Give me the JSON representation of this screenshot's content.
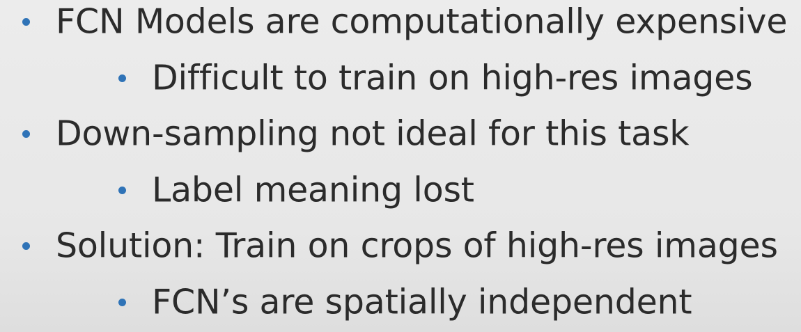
{
  "slide": {
    "bullets": [
      {
        "level": 1,
        "text": "FCN Models are computationally expensive"
      },
      {
        "level": 2,
        "text": "Difficult to train on high-res images"
      },
      {
        "level": 1,
        "text": "Down-sampling not ideal for this task"
      },
      {
        "level": 2,
        "text": "Label meaning lost"
      },
      {
        "level": 1,
        "text": "Solution: Train on crops of high-res images"
      },
      {
        "level": 2,
        "text": "FCN’s are spatially independent"
      }
    ]
  },
  "colors": {
    "background": "#e9e9e9",
    "text": "#2b2b2b",
    "bullet": "#2f73b7"
  }
}
